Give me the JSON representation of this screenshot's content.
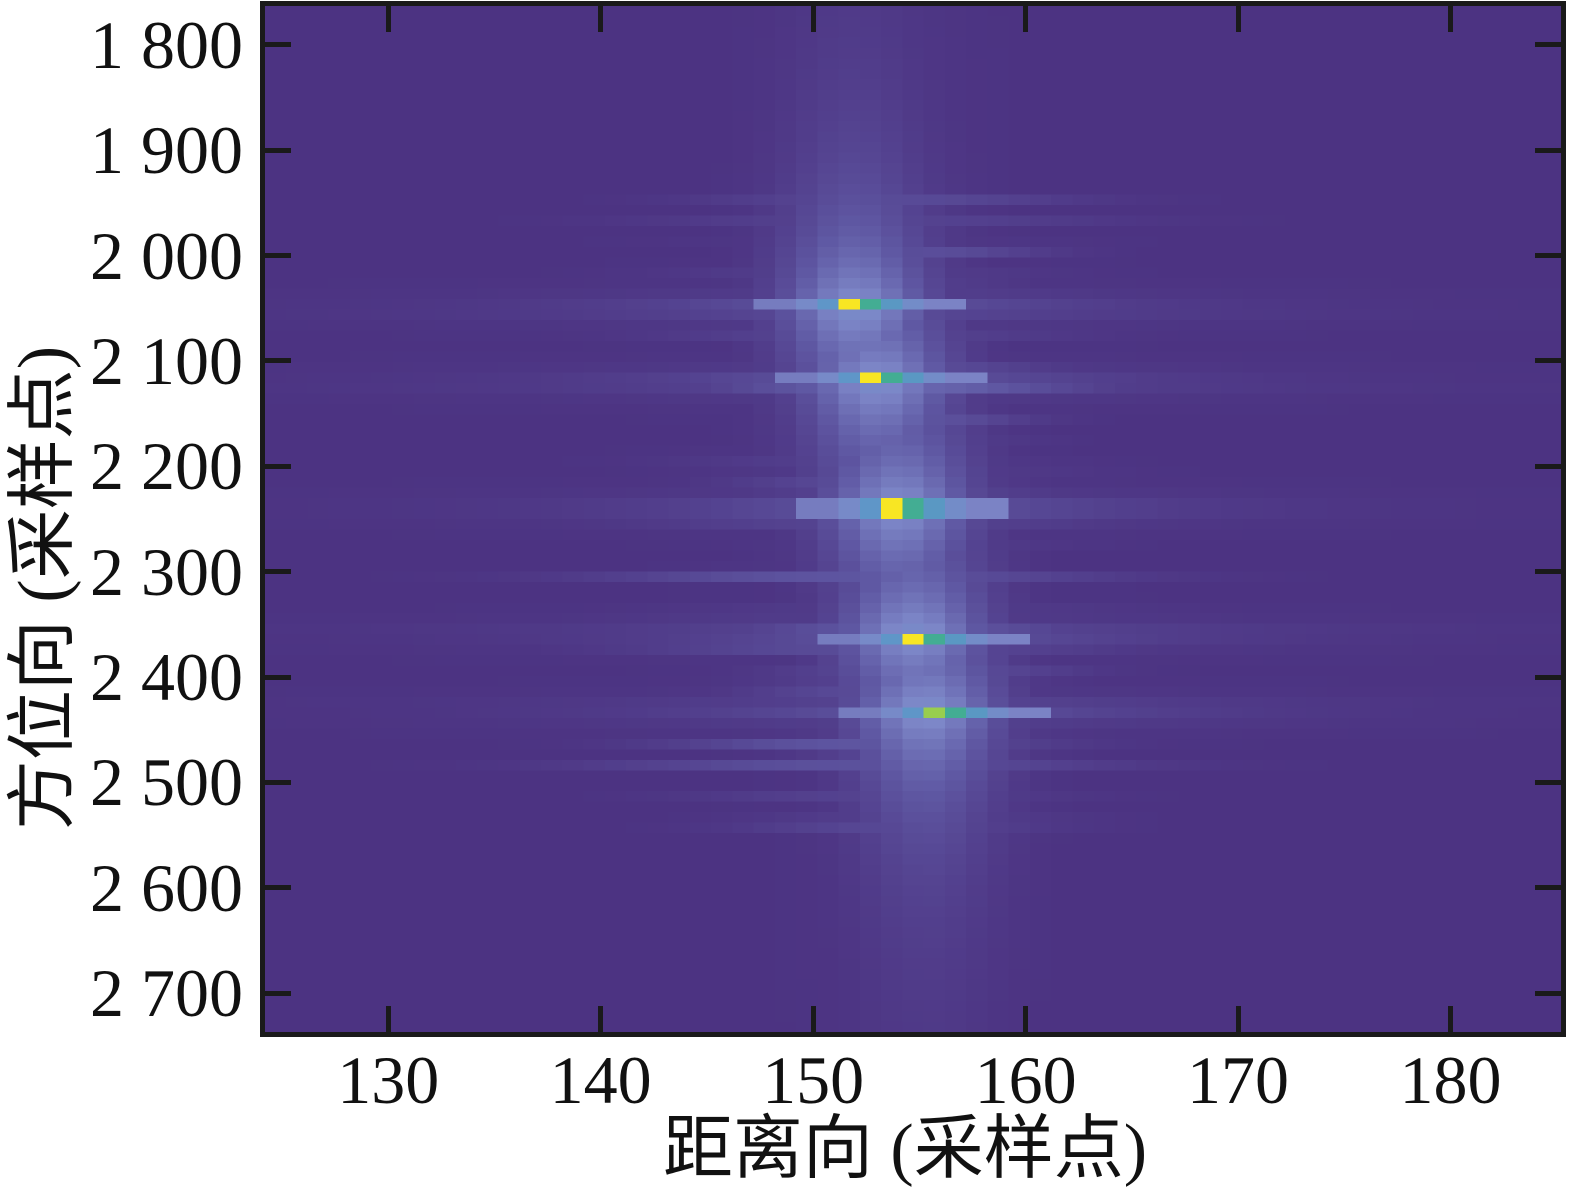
{
  "figure": {
    "page_background": "#ffffff",
    "frame_color": "#1a1a1a"
  },
  "chart_data": {
    "type": "heatmap",
    "title": "",
    "xlabel": "距离向 (采样点)",
    "ylabel": "方位向 (采样点)",
    "x_ticks": {
      "values": [
        130,
        140,
        150,
        160,
        170,
        180
      ],
      "labels": [
        "130",
        "140",
        "150",
        "160",
        "170",
        "180"
      ]
    },
    "y_ticks": {
      "values": [
        1800,
        1900,
        2000,
        2100,
        2200,
        2300,
        2400,
        2500,
        2600,
        2700
      ],
      "labels": [
        "1 800",
        "1 900",
        "2 000",
        "2 100",
        "2 200",
        "2 300",
        "2 400",
        "2 500",
        "2 600",
        "2 700"
      ]
    },
    "x_range": [
      124.2,
      185.2
    ],
    "y_range_top_to_bottom": [
      1763,
      2737
    ],
    "grid": false,
    "legend": "none",
    "background_value_color": "#4c3382",
    "colormap_stops": [
      [
        0.0,
        "#4c3382"
      ],
      [
        0.12,
        "#5f58a3"
      ],
      [
        0.25,
        "#7d87c8"
      ],
      [
        0.4,
        "#5f96c8"
      ],
      [
        0.55,
        "#3ca5a5"
      ],
      [
        0.7,
        "#50be6e"
      ],
      [
        0.85,
        "#aad246"
      ],
      [
        1.0,
        "#f8e623"
      ]
    ],
    "targets": [
      {
        "x": 152.0,
        "y": 2050,
        "peak": 1.0
      },
      {
        "x": 153.0,
        "y": 2120,
        "peak": 1.0
      },
      {
        "x": 154.0,
        "y": 2240,
        "peak": 1.0
      },
      {
        "x": 154.7,
        "y": 2360,
        "peak": 1.0
      },
      {
        "x": 155.3,
        "y": 2432,
        "peak": 0.82
      }
    ],
    "clutter_band": {
      "y_min": 1945,
      "y_max": 2545,
      "center_x": 153.5
    }
  }
}
